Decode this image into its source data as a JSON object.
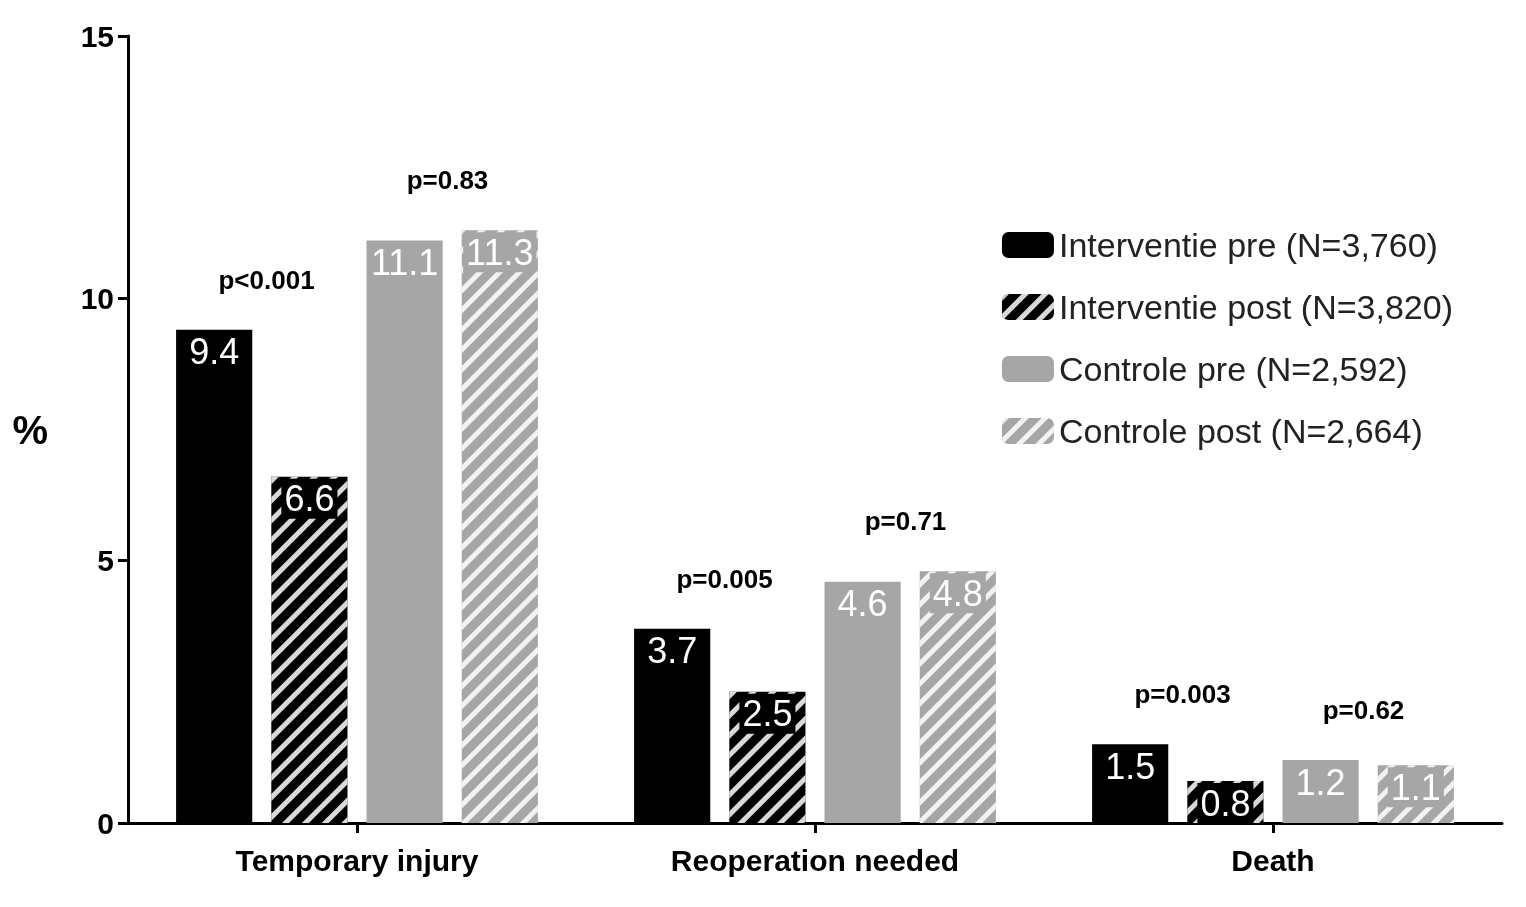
{
  "chart_data": {
    "type": "bar",
    "ylabel": "%",
    "categories": [
      "Temporary injury",
      "Reoperation needed",
      "Death"
    ],
    "series": [
      {
        "name": "Interventie pre (N=3,760)",
        "color": "#000000",
        "values": [
          9.4,
          3.7,
          1.5
        ]
      },
      {
        "name": "Interventie post (N=3,820)",
        "color": "#000000",
        "values": [
          6.6,
          2.5,
          0.8
        ]
      },
      {
        "name": "Controle pre (N=2,592)",
        "color": "#a6a6a6",
        "values": [
          11.1,
          4.6,
          1.2
        ]
      },
      {
        "name": "Controle post (N=2,664)",
        "color": "#a6a6a6",
        "values": [
          11.3,
          4.8,
          1.1
        ]
      }
    ],
    "ylim": [
      0,
      15
    ],
    "yticks": [
      0,
      5,
      10,
      15
    ],
    "grid": false,
    "legend": "top right",
    "data_labels": true,
    "annotations": [
      "p<0.001",
      "p=0.83",
      "p=0.005",
      "p=0.71",
      "p=0.003",
      "p=0.62"
    ]
  }
}
